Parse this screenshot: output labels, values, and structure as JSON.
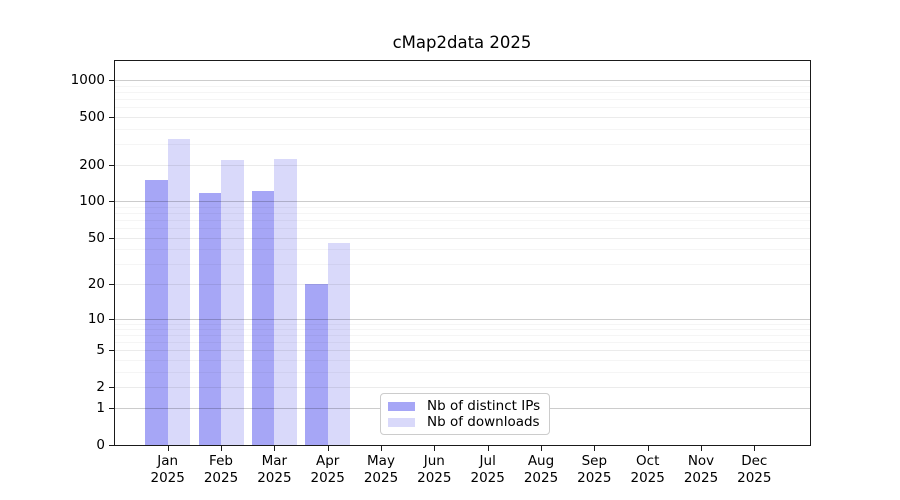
{
  "chart_data": {
    "type": "bar",
    "title": "cMap2data 2025",
    "categories": [
      "Jan",
      "Feb",
      "Mar",
      "Apr",
      "May",
      "Jun",
      "Jul",
      "Aug",
      "Sep",
      "Oct",
      "Nov",
      "Dec"
    ],
    "x_tick_line2": "2025",
    "series": [
      {
        "name": "Nb of distinct IPs",
        "color": "#a6a6f6",
        "values": [
          150,
          118,
          123,
          20,
          0,
          0,
          0,
          0,
          0,
          0,
          0,
          0
        ]
      },
      {
        "name": "Nb of downloads",
        "color": "#d9d9fa",
        "values": [
          330,
          220,
          224,
          45,
          0,
          0,
          0,
          0,
          0,
          0,
          0,
          0
        ]
      }
    ],
    "y_scale": "log1p",
    "y_ticks": [
      0,
      1,
      2,
      5,
      10,
      20,
      50,
      100,
      200,
      500,
      1000
    ],
    "y_minor_ticks": [
      3,
      4,
      6,
      7,
      8,
      9,
      30,
      40,
      60,
      70,
      80,
      90,
      300,
      400,
      600,
      700,
      800,
      900
    ],
    "ylim": [
      0,
      1445
    ],
    "xlabel": "",
    "ylabel": "",
    "grid": true,
    "legend_position": "lower center"
  }
}
